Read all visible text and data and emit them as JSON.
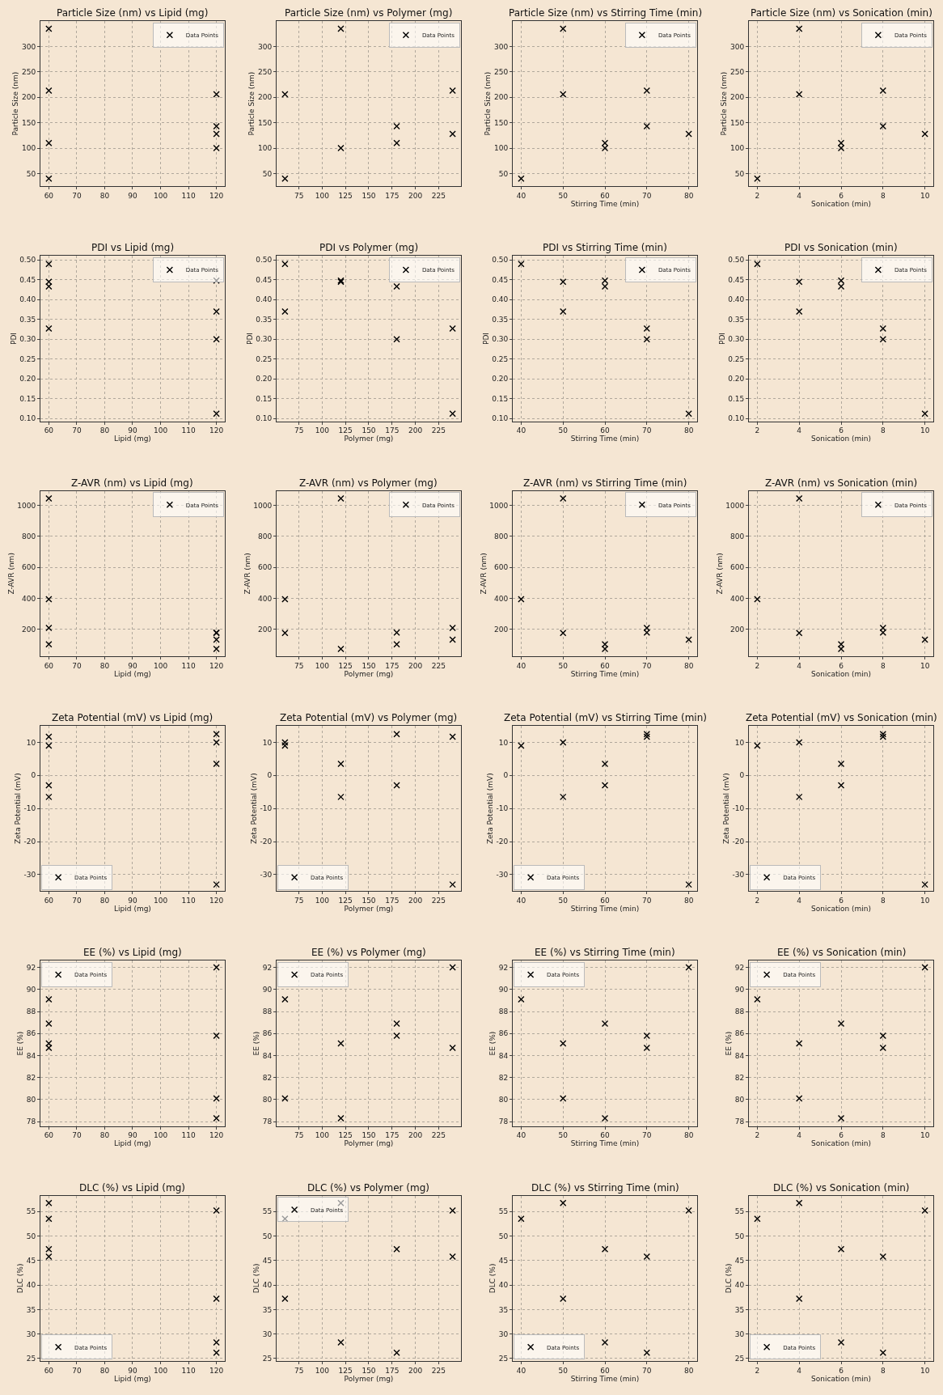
{
  "chart_data": [
    {
      "type": "scatter",
      "title": "Particle Size (nm) vs Lipid (mg)",
      "ylabel": "Particle Size (nm)",
      "x": [
        60,
        60,
        120,
        60,
        120,
        60,
        120,
        120
      ],
      "series": [
        {
          "name": "Data Points",
          "color": "#000000",
          "values": [
            40,
            335,
            206,
            110,
            100,
            213,
            143,
            128
          ]
        }
      ],
      "xlim": [
        57,
        123
      ],
      "xticks": [
        60,
        70,
        80,
        90,
        100,
        110,
        120
      ],
      "ylim": [
        25,
        350
      ],
      "yticks": [
        50,
        100,
        150,
        200,
        250,
        300
      ],
      "grid": true,
      "legend": "top right",
      "marker": "cross"
    },
    {
      "type": "scatter",
      "title": "Particle Size (nm) vs Polymer (mg)",
      "ylabel": "Particle Size (nm)",
      "x": [
        60,
        120,
        60,
        180,
        120,
        240,
        180,
        240
      ],
      "series": [
        {
          "name": "Data Points",
          "color": "#000000",
          "values": [
            40,
            335,
            206,
            110,
            100,
            213,
            143,
            128
          ]
        }
      ],
      "xlim": [
        51,
        249
      ],
      "xticks": [
        75,
        100,
        125,
        150,
        175,
        200,
        225
      ],
      "ylim": [
        25,
        350
      ],
      "yticks": [
        50,
        100,
        150,
        200,
        250,
        300
      ],
      "grid": true,
      "legend": "top right",
      "marker": "cross"
    },
    {
      "type": "scatter",
      "title": "Particle Size (nm) vs Stirring Time (min)",
      "xlabel": "Stirring Time (min)",
      "ylabel": "Particle Size (nm)",
      "x": [
        40,
        50,
        50,
        60,
        60,
        70,
        70,
        80
      ],
      "series": [
        {
          "name": "Data Points",
          "color": "#000000",
          "values": [
            40,
            335,
            206,
            110,
            100,
            213,
            143,
            128
          ]
        }
      ],
      "xlim": [
        38,
        82
      ],
      "xticks": [
        40,
        50,
        60,
        70,
        80
      ],
      "ylim": [
        25,
        350
      ],
      "yticks": [
        50,
        100,
        150,
        200,
        250,
        300
      ],
      "grid": true,
      "legend": "top right",
      "marker": "cross"
    },
    {
      "type": "scatter",
      "title": "Particle Size (nm) vs Sonication (min)",
      "xlabel": "Sonication (min)",
      "ylabel": "Particle Size (nm)",
      "x": [
        2,
        4,
        4,
        6,
        6,
        8,
        8,
        10
      ],
      "series": [
        {
          "name": "Data Points",
          "color": "#000000",
          "values": [
            40,
            335,
            206,
            110,
            100,
            213,
            143,
            128
          ]
        }
      ],
      "xlim": [
        1.6,
        10.4
      ],
      "xticks": [
        2,
        4,
        6,
        8,
        10
      ],
      "ylim": [
        25,
        350
      ],
      "yticks": [
        50,
        100,
        150,
        200,
        250,
        300
      ],
      "grid": true,
      "legend": "top right",
      "marker": "cross"
    },
    {
      "type": "scatter",
      "title": "PDI vs Lipid (mg)",
      "xlabel": "Lipid (mg)",
      "ylabel": "PDI",
      "x": [
        60,
        60,
        120,
        60,
        120,
        60,
        120,
        120
      ],
      "series": [
        {
          "name": "Data Points",
          "color": "#000000",
          "values": [
            0.49,
            0.445,
            0.37,
            0.433,
            0.448,
            0.327,
            0.3,
            0.112
          ]
        }
      ],
      "xlim": [
        57,
        123
      ],
      "xticks": [
        60,
        70,
        80,
        90,
        100,
        110,
        120
      ],
      "ylim": [
        0.093,
        0.51
      ],
      "yticks": [
        {
          "value": 0.1,
          "label": "0.10"
        },
        0.15,
        {
          "value": 0.2,
          "label": "0.20"
        },
        0.25,
        {
          "value": 0.3,
          "label": "0.30"
        },
        0.35,
        {
          "value": 0.4,
          "label": "0.40"
        },
        0.45,
        {
          "value": 0.5,
          "label": "0.50"
        }
      ],
      "grid": true,
      "legend": "top right",
      "marker": "cross"
    },
    {
      "type": "scatter",
      "title": "PDI vs Polymer (mg)",
      "xlabel": "Polymer (mg)",
      "ylabel": "PDI",
      "x": [
        60,
        120,
        60,
        180,
        120,
        240,
        180,
        240
      ],
      "series": [
        {
          "name": "Data Points",
          "color": "#000000",
          "values": [
            0.49,
            0.445,
            0.37,
            0.433,
            0.448,
            0.327,
            0.3,
            0.112
          ]
        }
      ],
      "xlim": [
        51,
        249
      ],
      "xticks": [
        75,
        100,
        125,
        150,
        175,
        200,
        225
      ],
      "ylim": [
        0.093,
        0.51
      ],
      "yticks": [
        {
          "value": 0.1,
          "label": "0.10"
        },
        0.15,
        {
          "value": 0.2,
          "label": "0.20"
        },
        0.25,
        {
          "value": 0.3,
          "label": "0.30"
        },
        0.35,
        {
          "value": 0.4,
          "label": "0.40"
        },
        0.45,
        {
          "value": 0.5,
          "label": "0.50"
        }
      ],
      "grid": true,
      "legend": "top right",
      "marker": "cross"
    },
    {
      "type": "scatter",
      "title": "PDI vs Stirring Time (min)",
      "xlabel": "Stirring Time (min)",
      "ylabel": "PDI",
      "x": [
        40,
        50,
        50,
        60,
        60,
        70,
        70,
        80
      ],
      "series": [
        {
          "name": "Data Points",
          "color": "#000000",
          "values": [
            0.49,
            0.445,
            0.37,
            0.433,
            0.448,
            0.327,
            0.3,
            0.112
          ]
        }
      ],
      "xlim": [
        38,
        82
      ],
      "xticks": [
        40,
        50,
        60,
        70,
        80
      ],
      "ylim": [
        0.093,
        0.51
      ],
      "yticks": [
        {
          "value": 0.1,
          "label": "0.10"
        },
        0.15,
        {
          "value": 0.2,
          "label": "0.20"
        },
        0.25,
        {
          "value": 0.3,
          "label": "0.30"
        },
        0.35,
        {
          "value": 0.4,
          "label": "0.40"
        },
        0.45,
        {
          "value": 0.5,
          "label": "0.50"
        }
      ],
      "grid": true,
      "legend": "top right",
      "marker": "cross"
    },
    {
      "type": "scatter",
      "title": "PDI vs Sonication (min)",
      "xlabel": "Sonication (min)",
      "ylabel": "PDI",
      "x": [
        2,
        4,
        4,
        6,
        6,
        8,
        8,
        10
      ],
      "series": [
        {
          "name": "Data Points",
          "color": "#000000",
          "values": [
            0.49,
            0.445,
            0.37,
            0.433,
            0.448,
            0.327,
            0.3,
            0.112
          ]
        }
      ],
      "xlim": [
        1.6,
        10.4
      ],
      "xticks": [
        2,
        4,
        6,
        8,
        10
      ],
      "ylim": [
        0.093,
        0.51
      ],
      "yticks": [
        {
          "value": 0.1,
          "label": "0.10"
        },
        0.15,
        {
          "value": 0.2,
          "label": "0.20"
        },
        0.25,
        {
          "value": 0.3,
          "label": "0.30"
        },
        0.35,
        {
          "value": 0.4,
          "label": "0.40"
        },
        0.45,
        {
          "value": 0.5,
          "label": "0.50"
        }
      ],
      "grid": true,
      "legend": "top right",
      "marker": "cross"
    },
    {
      "type": "scatter",
      "title": "Z-AVR (nm) vs Lipid (mg)",
      "xlabel": "Lipid (mg)",
      "ylabel": "Z-AVR (nm)",
      "x": [
        60,
        60,
        120,
        60,
        120,
        60,
        120,
        120
      ],
      "series": [
        {
          "name": "Data Points",
          "color": "#000000",
          "values": [
            395,
            1045,
            178,
            105,
            75,
            210,
            180,
            135
          ]
        }
      ],
      "xlim": [
        57,
        123
      ],
      "xticks": [
        60,
        70,
        80,
        90,
        100,
        110,
        120
      ],
      "ylim": [
        28,
        1093
      ],
      "yticks": [
        200,
        400,
        600,
        800,
        1000
      ],
      "grid": true,
      "legend": "top right",
      "marker": "cross"
    },
    {
      "type": "scatter",
      "title": "Z-AVR (nm) vs Polymer (mg)",
      "xlabel": "Polymer (mg)",
      "ylabel": "Z-AVR (nm)",
      "x": [
        60,
        120,
        60,
        180,
        120,
        240,
        180,
        240
      ],
      "series": [
        {
          "name": "Data Points",
          "color": "#000000",
          "values": [
            395,
            1045,
            178,
            105,
            75,
            210,
            180,
            135
          ]
        }
      ],
      "xlim": [
        51,
        249
      ],
      "xticks": [
        75,
        100,
        125,
        150,
        175,
        200,
        225
      ],
      "ylim": [
        28,
        1093
      ],
      "yticks": [
        200,
        400,
        600,
        800,
        1000
      ],
      "grid": true,
      "legend": "top right",
      "marker": "cross"
    },
    {
      "type": "scatter",
      "title": "Z-AVR (nm) vs Stirring Time (min)",
      "xlabel": "Stirring Time (min)",
      "ylabel": "Z-AVR (nm)",
      "x": [
        40,
        50,
        50,
        60,
        60,
        70,
        70,
        80
      ],
      "series": [
        {
          "name": "Data Points",
          "color": "#000000",
          "values": [
            395,
            1045,
            178,
            105,
            75,
            210,
            180,
            135
          ]
        }
      ],
      "xlim": [
        38,
        82
      ],
      "xticks": [
        40,
        50,
        60,
        70,
        80
      ],
      "ylim": [
        28,
        1093
      ],
      "yticks": [
        200,
        400,
        600,
        800,
        1000
      ],
      "grid": true,
      "legend": "top right",
      "marker": "cross"
    },
    {
      "type": "scatter",
      "title": "Z-AVR (nm) vs Sonication (min)",
      "xlabel": "Sonication (min)",
      "ylabel": "Z-AVR (nm)",
      "x": [
        2,
        4,
        4,
        6,
        6,
        8,
        8,
        10
      ],
      "series": [
        {
          "name": "Data Points",
          "color": "#000000",
          "values": [
            395,
            1045,
            178,
            105,
            75,
            210,
            180,
            135
          ]
        }
      ],
      "xlim": [
        1.6,
        10.4
      ],
      "xticks": [
        2,
        4,
        6,
        8,
        10
      ],
      "ylim": [
        28,
        1093
      ],
      "yticks": [
        200,
        400,
        600,
        800,
        1000
      ],
      "grid": true,
      "legend": "top right",
      "marker": "cross"
    },
    {
      "type": "scatter",
      "title": "Zeta Potential (mV) vs Lipid (mg)",
      "xlabel": "Lipid (mg)",
      "ylabel": "Zeta Potential (mV)",
      "x": [
        60,
        60,
        120,
        60,
        120,
        60,
        120,
        120
      ],
      "series": [
        {
          "name": "Data Points",
          "color": "#000000",
          "values": [
            9,
            -6.5,
            10,
            -3,
            3.5,
            11.7,
            12.5,
            -33
          ]
        }
      ],
      "xlim": [
        57,
        123
      ],
      "xticks": [
        60,
        70,
        80,
        90,
        100,
        110,
        120
      ],
      "ylim": [
        -35,
        15
      ],
      "yticks": [
        -30,
        -20,
        -10,
        0,
        10
      ],
      "grid": true,
      "legend": "bottom left",
      "marker": "cross"
    },
    {
      "type": "scatter",
      "title": "Zeta Potential (mV) vs Polymer (mg)",
      "xlabel": "Polymer (mg)",
      "ylabel": "Zeta Potential (mV)",
      "x": [
        60,
        120,
        60,
        180,
        120,
        240,
        180,
        240
      ],
      "series": [
        {
          "name": "Data Points",
          "color": "#000000",
          "values": [
            9,
            -6.5,
            10,
            -3,
            3.5,
            11.7,
            12.5,
            -33
          ]
        }
      ],
      "xlim": [
        51,
        249
      ],
      "xticks": [
        75,
        100,
        125,
        150,
        175,
        200,
        225
      ],
      "ylim": [
        -35,
        15
      ],
      "yticks": [
        -30,
        -20,
        -10,
        0,
        10
      ],
      "grid": true,
      "legend": "bottom left",
      "marker": "cross"
    },
    {
      "type": "scatter",
      "title": "Zeta Potential (mV) vs Stirring Time (min)",
      "xlabel": "Stirring Time (min)",
      "ylabel": "Zeta Potential (mV)",
      "x": [
        40,
        50,
        50,
        60,
        60,
        70,
        70,
        80
      ],
      "series": [
        {
          "name": "Data Points",
          "color": "#000000",
          "values": [
            9,
            -6.5,
            10,
            -3,
            3.5,
            11.7,
            12.5,
            -33
          ]
        }
      ],
      "xlim": [
        38,
        82
      ],
      "xticks": [
        40,
        50,
        60,
        70,
        80
      ],
      "ylim": [
        -35,
        15
      ],
      "yticks": [
        -30,
        -20,
        -10,
        0,
        10
      ],
      "grid": true,
      "legend": "bottom left",
      "marker": "cross"
    },
    {
      "type": "scatter",
      "title": "Zeta Potential (mV) vs Sonication (min)",
      "xlabel": "Sonication (min)",
      "ylabel": "Zeta Potential (mV)",
      "x": [
        2,
        4,
        4,
        6,
        6,
        8,
        8,
        10
      ],
      "series": [
        {
          "name": "Data Points",
          "color": "#000000",
          "values": [
            9,
            -6.5,
            10,
            -3,
            3.5,
            11.7,
            12.5,
            -33
          ]
        }
      ],
      "xlim": [
        1.6,
        10.4
      ],
      "xticks": [
        2,
        4,
        6,
        8,
        10
      ],
      "ylim": [
        -35,
        15
      ],
      "yticks": [
        -30,
        -20,
        -10,
        0,
        10
      ],
      "grid": true,
      "legend": "bottom left",
      "marker": "cross"
    },
    {
      "type": "scatter",
      "title": "EE (%) vs Lipid (mg)",
      "xlabel": "Lipid (mg)",
      "ylabel": "EE (%)",
      "x": [
        60,
        60,
        120,
        60,
        120,
        60,
        120,
        120
      ],
      "series": [
        {
          "name": "Data Points",
          "color": "#000000",
          "values": [
            89.1,
            85.1,
            80.1,
            86.9,
            78.3,
            84.7,
            85.8,
            92
          ]
        }
      ],
      "xlim": [
        57,
        123
      ],
      "xticks": [
        60,
        70,
        80,
        90,
        100,
        110,
        120
      ],
      "ylim": [
        77.6,
        92.6
      ],
      "yticks": [
        78,
        80,
        82,
        84,
        86,
        88,
        90,
        92
      ],
      "grid": true,
      "legend": "top left",
      "marker": "cross"
    },
    {
      "type": "scatter",
      "title": "EE (%) vs Polymer (mg)",
      "xlabel": "Polymer (mg)",
      "ylabel": "EE (%)",
      "x": [
        60,
        120,
        60,
        180,
        120,
        240,
        180,
        240
      ],
      "series": [
        {
          "name": "Data Points",
          "color": "#000000",
          "values": [
            89.1,
            85.1,
            80.1,
            86.9,
            78.3,
            84.7,
            85.8,
            92
          ]
        }
      ],
      "xlim": [
        51,
        249
      ],
      "xticks": [
        75,
        100,
        125,
        150,
        175,
        200,
        225
      ],
      "ylim": [
        77.6,
        92.6
      ],
      "yticks": [
        78,
        80,
        82,
        84,
        86,
        88,
        90,
        92
      ],
      "grid": true,
      "legend": "top left",
      "marker": "cross"
    },
    {
      "type": "scatter",
      "title": "EE (%) vs Stirring Time (min)",
      "xlabel": "Stirring Time (min)",
      "ylabel": "EE (%)",
      "x": [
        40,
        50,
        50,
        60,
        60,
        70,
        70,
        80
      ],
      "series": [
        {
          "name": "Data Points",
          "color": "#000000",
          "values": [
            89.1,
            85.1,
            80.1,
            86.9,
            78.3,
            84.7,
            85.8,
            92
          ]
        }
      ],
      "xlim": [
        38,
        82
      ],
      "xticks": [
        40,
        50,
        60,
        70,
        80
      ],
      "ylim": [
        77.6,
        92.6
      ],
      "yticks": [
        78,
        80,
        82,
        84,
        86,
        88,
        90,
        92
      ],
      "grid": true,
      "legend": "top left",
      "marker": "cross"
    },
    {
      "type": "scatter",
      "title": "EE (%) vs Sonication (min)",
      "xlabel": "Sonication (min)",
      "ylabel": "EE (%)",
      "x": [
        2,
        4,
        4,
        6,
        6,
        8,
        8,
        10
      ],
      "series": [
        {
          "name": "Data Points",
          "color": "#000000",
          "values": [
            89.1,
            85.1,
            80.1,
            86.9,
            78.3,
            84.7,
            85.8,
            92
          ]
        }
      ],
      "xlim": [
        1.6,
        10.4
      ],
      "xticks": [
        2,
        4,
        6,
        8,
        10
      ],
      "ylim": [
        77.6,
        92.6
      ],
      "yticks": [
        78,
        80,
        82,
        84,
        86,
        88,
        90,
        92
      ],
      "grid": true,
      "legend": "top left",
      "marker": "cross"
    },
    {
      "type": "scatter",
      "title": "DLC (%) vs Lipid (mg)",
      "xlabel": "Lipid (mg)",
      "ylabel": "DLC (%)",
      "x": [
        60,
        60,
        120,
        60,
        120,
        60,
        120,
        120
      ],
      "series": [
        {
          "name": "Data Points",
          "color": "#000000",
          "values": [
            53.5,
            56.7,
            37.2,
            47.3,
            28.3,
            45.8,
            26.2,
            55.2
          ]
        }
      ],
      "xlim": [
        57,
        123
      ],
      "xticks": [
        60,
        70,
        80,
        90,
        100,
        110,
        120
      ],
      "ylim": [
        24.5,
        58.2
      ],
      "yticks": [
        25,
        30,
        35,
        40,
        45,
        50,
        55
      ],
      "grid": true,
      "legend": "bottom left",
      "marker": "cross"
    },
    {
      "type": "scatter",
      "title": "DLC (%) vs Polymer (mg)",
      "xlabel": "Polymer (mg)",
      "ylabel": "DLC (%)",
      "x": [
        60,
        120,
        60,
        180,
        120,
        240,
        180,
        240
      ],
      "series": [
        {
          "name": "Data Points",
          "color": "#000000",
          "values": [
            53.5,
            56.7,
            37.2,
            47.3,
            28.3,
            45.8,
            26.2,
            55.2
          ]
        }
      ],
      "xlim": [
        51,
        249
      ],
      "xticks": [
        75,
        100,
        125,
        150,
        175,
        200,
        225
      ],
      "ylim": [
        24.5,
        58.2
      ],
      "yticks": [
        25,
        30,
        35,
        40,
        45,
        50,
        55
      ],
      "grid": true,
      "legend": "top left",
      "marker": "cross"
    },
    {
      "type": "scatter",
      "title": "DLC (%) vs Stirring Time (min)",
      "xlabel": "Stirring Time (min)",
      "ylabel": "DLC (%)",
      "x": [
        40,
        50,
        50,
        60,
        60,
        70,
        70,
        80
      ],
      "series": [
        {
          "name": "Data Points",
          "color": "#000000",
          "values": [
            53.5,
            56.7,
            37.2,
            47.3,
            28.3,
            45.8,
            26.2,
            55.2
          ]
        }
      ],
      "xlim": [
        38,
        82
      ],
      "xticks": [
        40,
        50,
        60,
        70,
        80
      ],
      "ylim": [
        24.5,
        58.2
      ],
      "yticks": [
        25,
        30,
        35,
        40,
        45,
        50,
        55
      ],
      "grid": true,
      "legend": "bottom left",
      "marker": "cross"
    },
    {
      "type": "scatter",
      "title": "DLC (%) vs Sonication (min)",
      "xlabel": "Sonication (min)",
      "ylabel": "DLC (%)",
      "x": [
        2,
        4,
        4,
        6,
        6,
        8,
        8,
        10
      ],
      "series": [
        {
          "name": "Data Points",
          "color": "#000000",
          "values": [
            53.5,
            56.7,
            37.2,
            47.3,
            28.3,
            45.8,
            26.2,
            55.2
          ]
        }
      ],
      "xlim": [
        1.6,
        10.4
      ],
      "xticks": [
        2,
        4,
        6,
        8,
        10
      ],
      "ylim": [
        24.5,
        58.2
      ],
      "yticks": [
        25,
        30,
        35,
        40,
        45,
        50,
        55
      ],
      "grid": true,
      "legend": "bottom left",
      "marker": "cross"
    }
  ]
}
